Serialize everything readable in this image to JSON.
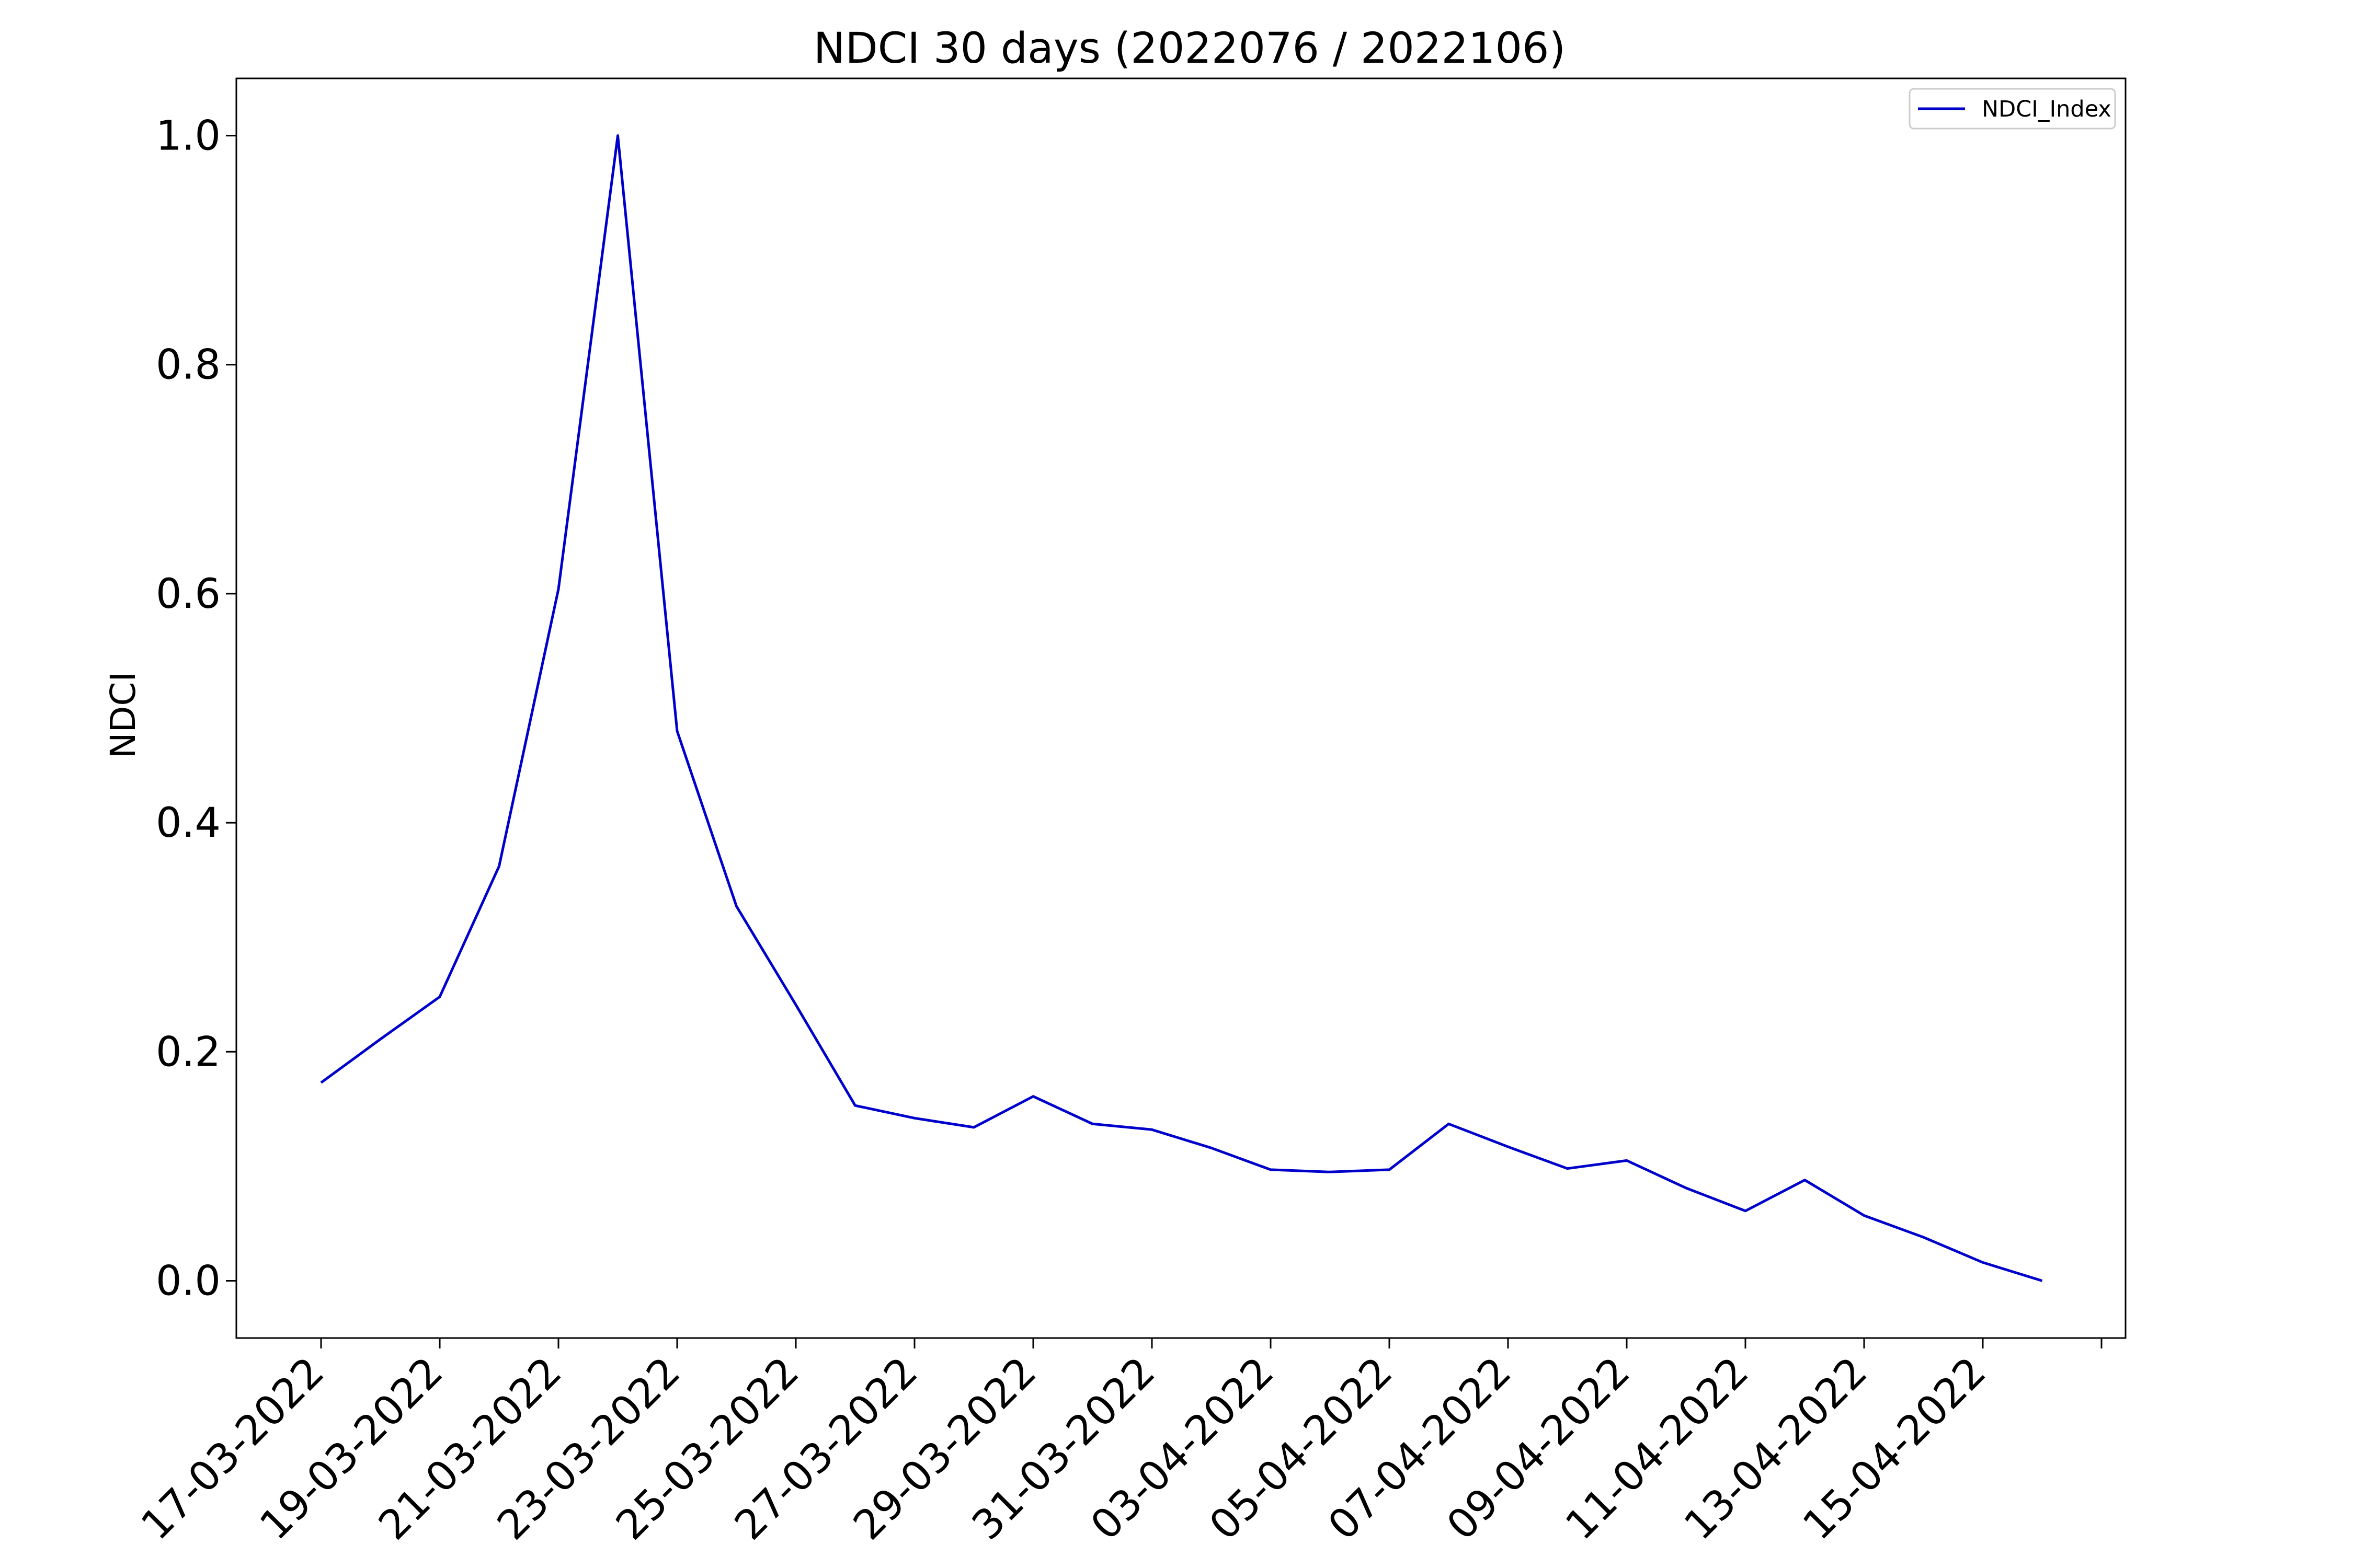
{
  "chart_data": {
    "type": "line",
    "title": "NDCI 30 days (2022076 / 2022106)",
    "xlabel": "",
    "ylabel": "NDCI",
    "x": [
      "17-03-2022",
      "18-03-2022",
      "19-03-2022",
      "20-03-2022",
      "21-03-2022",
      "22-03-2022",
      "23-03-2022",
      "24-03-2022",
      "25-03-2022",
      "26-03-2022",
      "27-03-2022",
      "28-03-2022",
      "29-03-2022",
      "30-03-2022",
      "31-03-2022",
      "01-04-2022",
      "02-04-2022",
      "03-04-2022",
      "04-04-2022",
      "05-04-2022",
      "06-04-2022",
      "07-04-2022",
      "08-04-2022",
      "09-04-2022",
      "10-04-2022",
      "11-04-2022",
      "12-04-2022",
      "13-04-2022",
      "14-04-2022",
      "15-04-2022"
    ],
    "x_tick_labels": [
      "17-03-2022",
      "19-03-2022",
      "21-03-2022",
      "23-03-2022",
      "25-03-2022",
      "27-03-2022",
      "29-03-2022",
      "31-03-2022",
      "03-04-2022",
      "05-04-2022",
      "07-04-2022",
      "09-04-2022",
      "11-04-2022",
      "13-04-2022",
      "15-04-2022"
    ],
    "series": [
      {
        "name": "NDCI_Index",
        "color": "#0000cc",
        "values": [
          0.173,
          0.211,
          0.248,
          0.362,
          0.604,
          1.0,
          0.48,
          0.327,
          0.241,
          0.153,
          0.142,
          0.134,
          0.161,
          0.137,
          0.132,
          0.116,
          0.097,
          0.095,
          0.097,
          0.137,
          0.117,
          0.098,
          0.105,
          0.081,
          0.061,
          0.088,
          0.057,
          0.038,
          0.016,
          0.0
        ]
      }
    ],
    "ylim": [
      -0.05,
      1.05
    ],
    "y_ticks": [
      "0.0",
      "0.2",
      "0.4",
      "0.6",
      "0.8",
      "1.0"
    ],
    "grid": false,
    "legend_position": "top-right"
  }
}
